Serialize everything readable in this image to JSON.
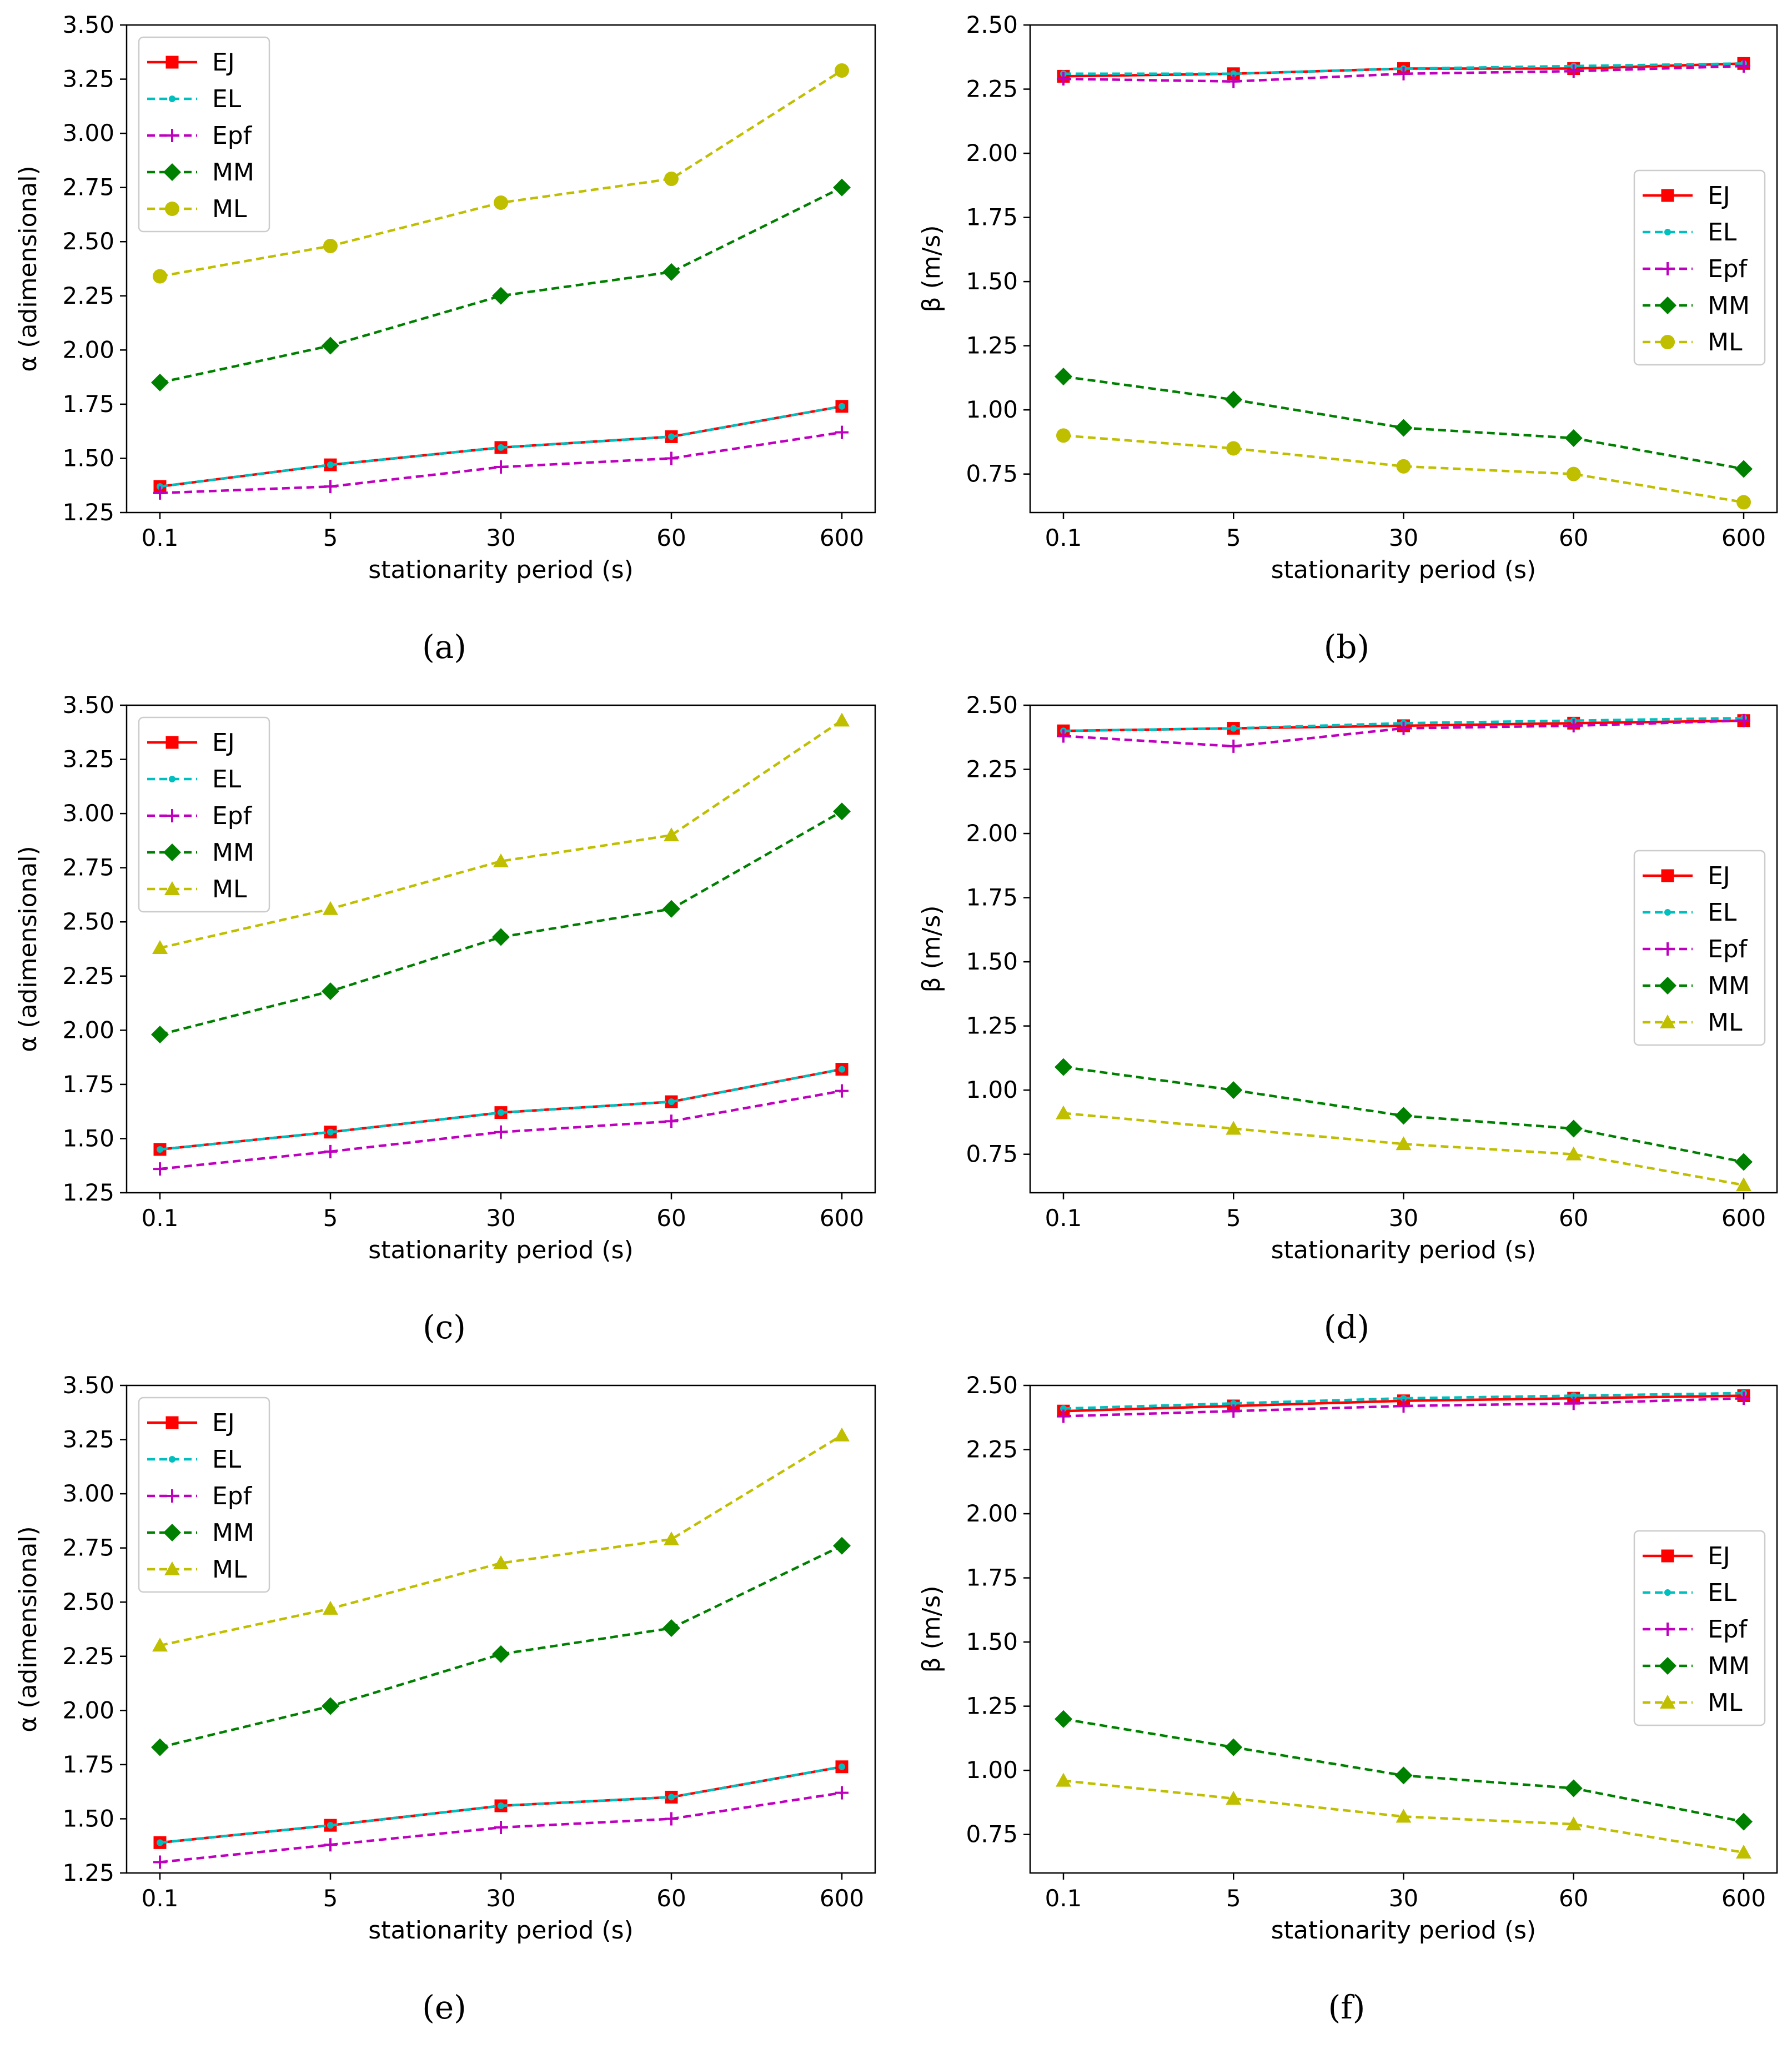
{
  "colors": {
    "EJ": "#ff0000",
    "EL": "#00bfbf",
    "Epf": "#bf00bf",
    "MM": "#008000",
    "ML": "#bfbf00"
  },
  "chart_data": [
    {
      "panel": "(a)",
      "type": "line",
      "xlabel": "stationarity period (s)",
      "ylabel": "α (adimensional)",
      "categories": [
        "0.1",
        "5",
        "30",
        "60",
        "600"
      ],
      "ylim": [
        1.25,
        3.5
      ],
      "yticks": [
        "1.25",
        "1.50",
        "1.75",
        "2.00",
        "2.25",
        "2.50",
        "2.75",
        "3.00",
        "3.25",
        "3.50"
      ],
      "legend_position": "upper-left",
      "series": [
        {
          "name": "EJ",
          "marker": "square",
          "values": [
            1.37,
            1.47,
            1.55,
            1.6,
            1.74
          ]
        },
        {
          "name": "EL",
          "marker": "dot",
          "values": [
            1.37,
            1.47,
            1.55,
            1.6,
            1.74
          ]
        },
        {
          "name": "Epf",
          "marker": "plus",
          "values": [
            1.34,
            1.37,
            1.46,
            1.5,
            1.62
          ]
        },
        {
          "name": "MM",
          "marker": "diamond",
          "values": [
            1.85,
            2.02,
            2.25,
            2.36,
            2.75
          ]
        },
        {
          "name": "ML",
          "marker": "circle",
          "values": [
            2.34,
            2.48,
            2.68,
            2.79,
            3.29
          ]
        }
      ]
    },
    {
      "panel": "(b)",
      "type": "line",
      "xlabel": "stationarity period (s)",
      "ylabel": "β (m/s)",
      "categories": [
        "0.1",
        "5",
        "30",
        "60",
        "600"
      ],
      "ylim": [
        0.6,
        2.5
      ],
      "yticks": [
        "0.75",
        "1.00",
        "1.25",
        "1.50",
        "1.75",
        "2.00",
        "2.25",
        "2.50"
      ],
      "legend_position": "center-right",
      "series": [
        {
          "name": "EJ",
          "marker": "square",
          "values": [
            2.3,
            2.31,
            2.33,
            2.33,
            2.35
          ]
        },
        {
          "name": "EL",
          "marker": "dot",
          "values": [
            2.31,
            2.31,
            2.33,
            2.34,
            2.35
          ]
        },
        {
          "name": "Epf",
          "marker": "plus",
          "values": [
            2.29,
            2.28,
            2.31,
            2.32,
            2.34
          ]
        },
        {
          "name": "MM",
          "marker": "diamond",
          "values": [
            1.13,
            1.04,
            0.93,
            0.89,
            0.77
          ]
        },
        {
          "name": "ML",
          "marker": "circle",
          "values": [
            0.9,
            0.85,
            0.78,
            0.75,
            0.64
          ]
        }
      ]
    },
    {
      "panel": "(c)",
      "type": "line",
      "xlabel": "stationarity period (s)",
      "ylabel": "α (adimensional)",
      "categories": [
        "0.1",
        "5",
        "30",
        "60",
        "600"
      ],
      "ylim": [
        1.25,
        3.5
      ],
      "yticks": [
        "1.25",
        "1.50",
        "1.75",
        "2.00",
        "2.25",
        "2.50",
        "2.75",
        "3.00",
        "3.25",
        "3.50"
      ],
      "legend_position": "upper-left",
      "series": [
        {
          "name": "EJ",
          "marker": "square",
          "values": [
            1.45,
            1.53,
            1.62,
            1.67,
            1.82
          ]
        },
        {
          "name": "EL",
          "marker": "dot",
          "values": [
            1.45,
            1.53,
            1.62,
            1.67,
            1.82
          ]
        },
        {
          "name": "Epf",
          "marker": "plus",
          "values": [
            1.36,
            1.44,
            1.53,
            1.58,
            1.72
          ]
        },
        {
          "name": "MM",
          "marker": "diamond",
          "values": [
            1.98,
            2.18,
            2.43,
            2.56,
            3.01
          ]
        },
        {
          "name": "ML",
          "marker": "triangle",
          "values": [
            2.38,
            2.56,
            2.78,
            2.9,
            3.43
          ]
        }
      ]
    },
    {
      "panel": "(d)",
      "type": "line",
      "xlabel": "stationarity period (s)",
      "ylabel": "β (m/s)",
      "categories": [
        "0.1",
        "5",
        "30",
        "60",
        "600"
      ],
      "ylim": [
        0.6,
        2.5
      ],
      "yticks": [
        "0.75",
        "1.00",
        "1.25",
        "1.50",
        "1.75",
        "2.00",
        "2.25",
        "2.50"
      ],
      "legend_position": "center-right",
      "series": [
        {
          "name": "EJ",
          "marker": "square",
          "values": [
            2.4,
            2.41,
            2.42,
            2.43,
            2.44
          ]
        },
        {
          "name": "EL",
          "marker": "dot",
          "values": [
            2.4,
            2.41,
            2.43,
            2.44,
            2.45
          ]
        },
        {
          "name": "Epf",
          "marker": "plus",
          "values": [
            2.38,
            2.34,
            2.41,
            2.42,
            2.44
          ]
        },
        {
          "name": "MM",
          "marker": "diamond",
          "values": [
            1.09,
            1.0,
            0.9,
            0.85,
            0.72
          ]
        },
        {
          "name": "ML",
          "marker": "triangle",
          "values": [
            0.91,
            0.85,
            0.79,
            0.75,
            0.63
          ]
        }
      ]
    },
    {
      "panel": "(e)",
      "type": "line",
      "xlabel": "stationarity period (s)",
      "ylabel": "α (adimensional)",
      "categories": [
        "0.1",
        "5",
        "30",
        "60",
        "600"
      ],
      "ylim": [
        1.25,
        3.5
      ],
      "yticks": [
        "1.25",
        "1.50",
        "1.75",
        "2.00",
        "2.25",
        "2.50",
        "2.75",
        "3.00",
        "3.25",
        "3.50"
      ],
      "legend_position": "upper-left",
      "series": [
        {
          "name": "EJ",
          "marker": "square",
          "values": [
            1.39,
            1.47,
            1.56,
            1.6,
            1.74
          ]
        },
        {
          "name": "EL",
          "marker": "dot",
          "values": [
            1.39,
            1.47,
            1.56,
            1.6,
            1.74
          ]
        },
        {
          "name": "Epf",
          "marker": "plus",
          "values": [
            1.3,
            1.38,
            1.46,
            1.5,
            1.62
          ]
        },
        {
          "name": "MM",
          "marker": "diamond",
          "values": [
            1.83,
            2.02,
            2.26,
            2.38,
            2.76
          ]
        },
        {
          "name": "ML",
          "marker": "triangle",
          "values": [
            2.3,
            2.47,
            2.68,
            2.79,
            3.27
          ]
        }
      ]
    },
    {
      "panel": "(f)",
      "type": "line",
      "xlabel": "stationarity period (s)",
      "ylabel": "β (m/s)",
      "categories": [
        "0.1",
        "5",
        "30",
        "60",
        "600"
      ],
      "ylim": [
        0.6,
        2.5
      ],
      "yticks": [
        "0.75",
        "1.00",
        "1.25",
        "1.50",
        "1.75",
        "2.00",
        "2.25",
        "2.50"
      ],
      "legend_position": "center-right",
      "series": [
        {
          "name": "EJ",
          "marker": "square",
          "values": [
            2.4,
            2.42,
            2.44,
            2.45,
            2.46
          ]
        },
        {
          "name": "EL",
          "marker": "dot",
          "values": [
            2.41,
            2.43,
            2.45,
            2.46,
            2.47
          ]
        },
        {
          "name": "Epf",
          "marker": "plus",
          "values": [
            2.38,
            2.4,
            2.42,
            2.43,
            2.45
          ]
        },
        {
          "name": "MM",
          "marker": "diamond",
          "values": [
            1.2,
            1.09,
            0.98,
            0.93,
            0.8
          ]
        },
        {
          "name": "ML",
          "marker": "triangle",
          "values": [
            0.96,
            0.89,
            0.82,
            0.79,
            0.68
          ]
        }
      ]
    }
  ]
}
